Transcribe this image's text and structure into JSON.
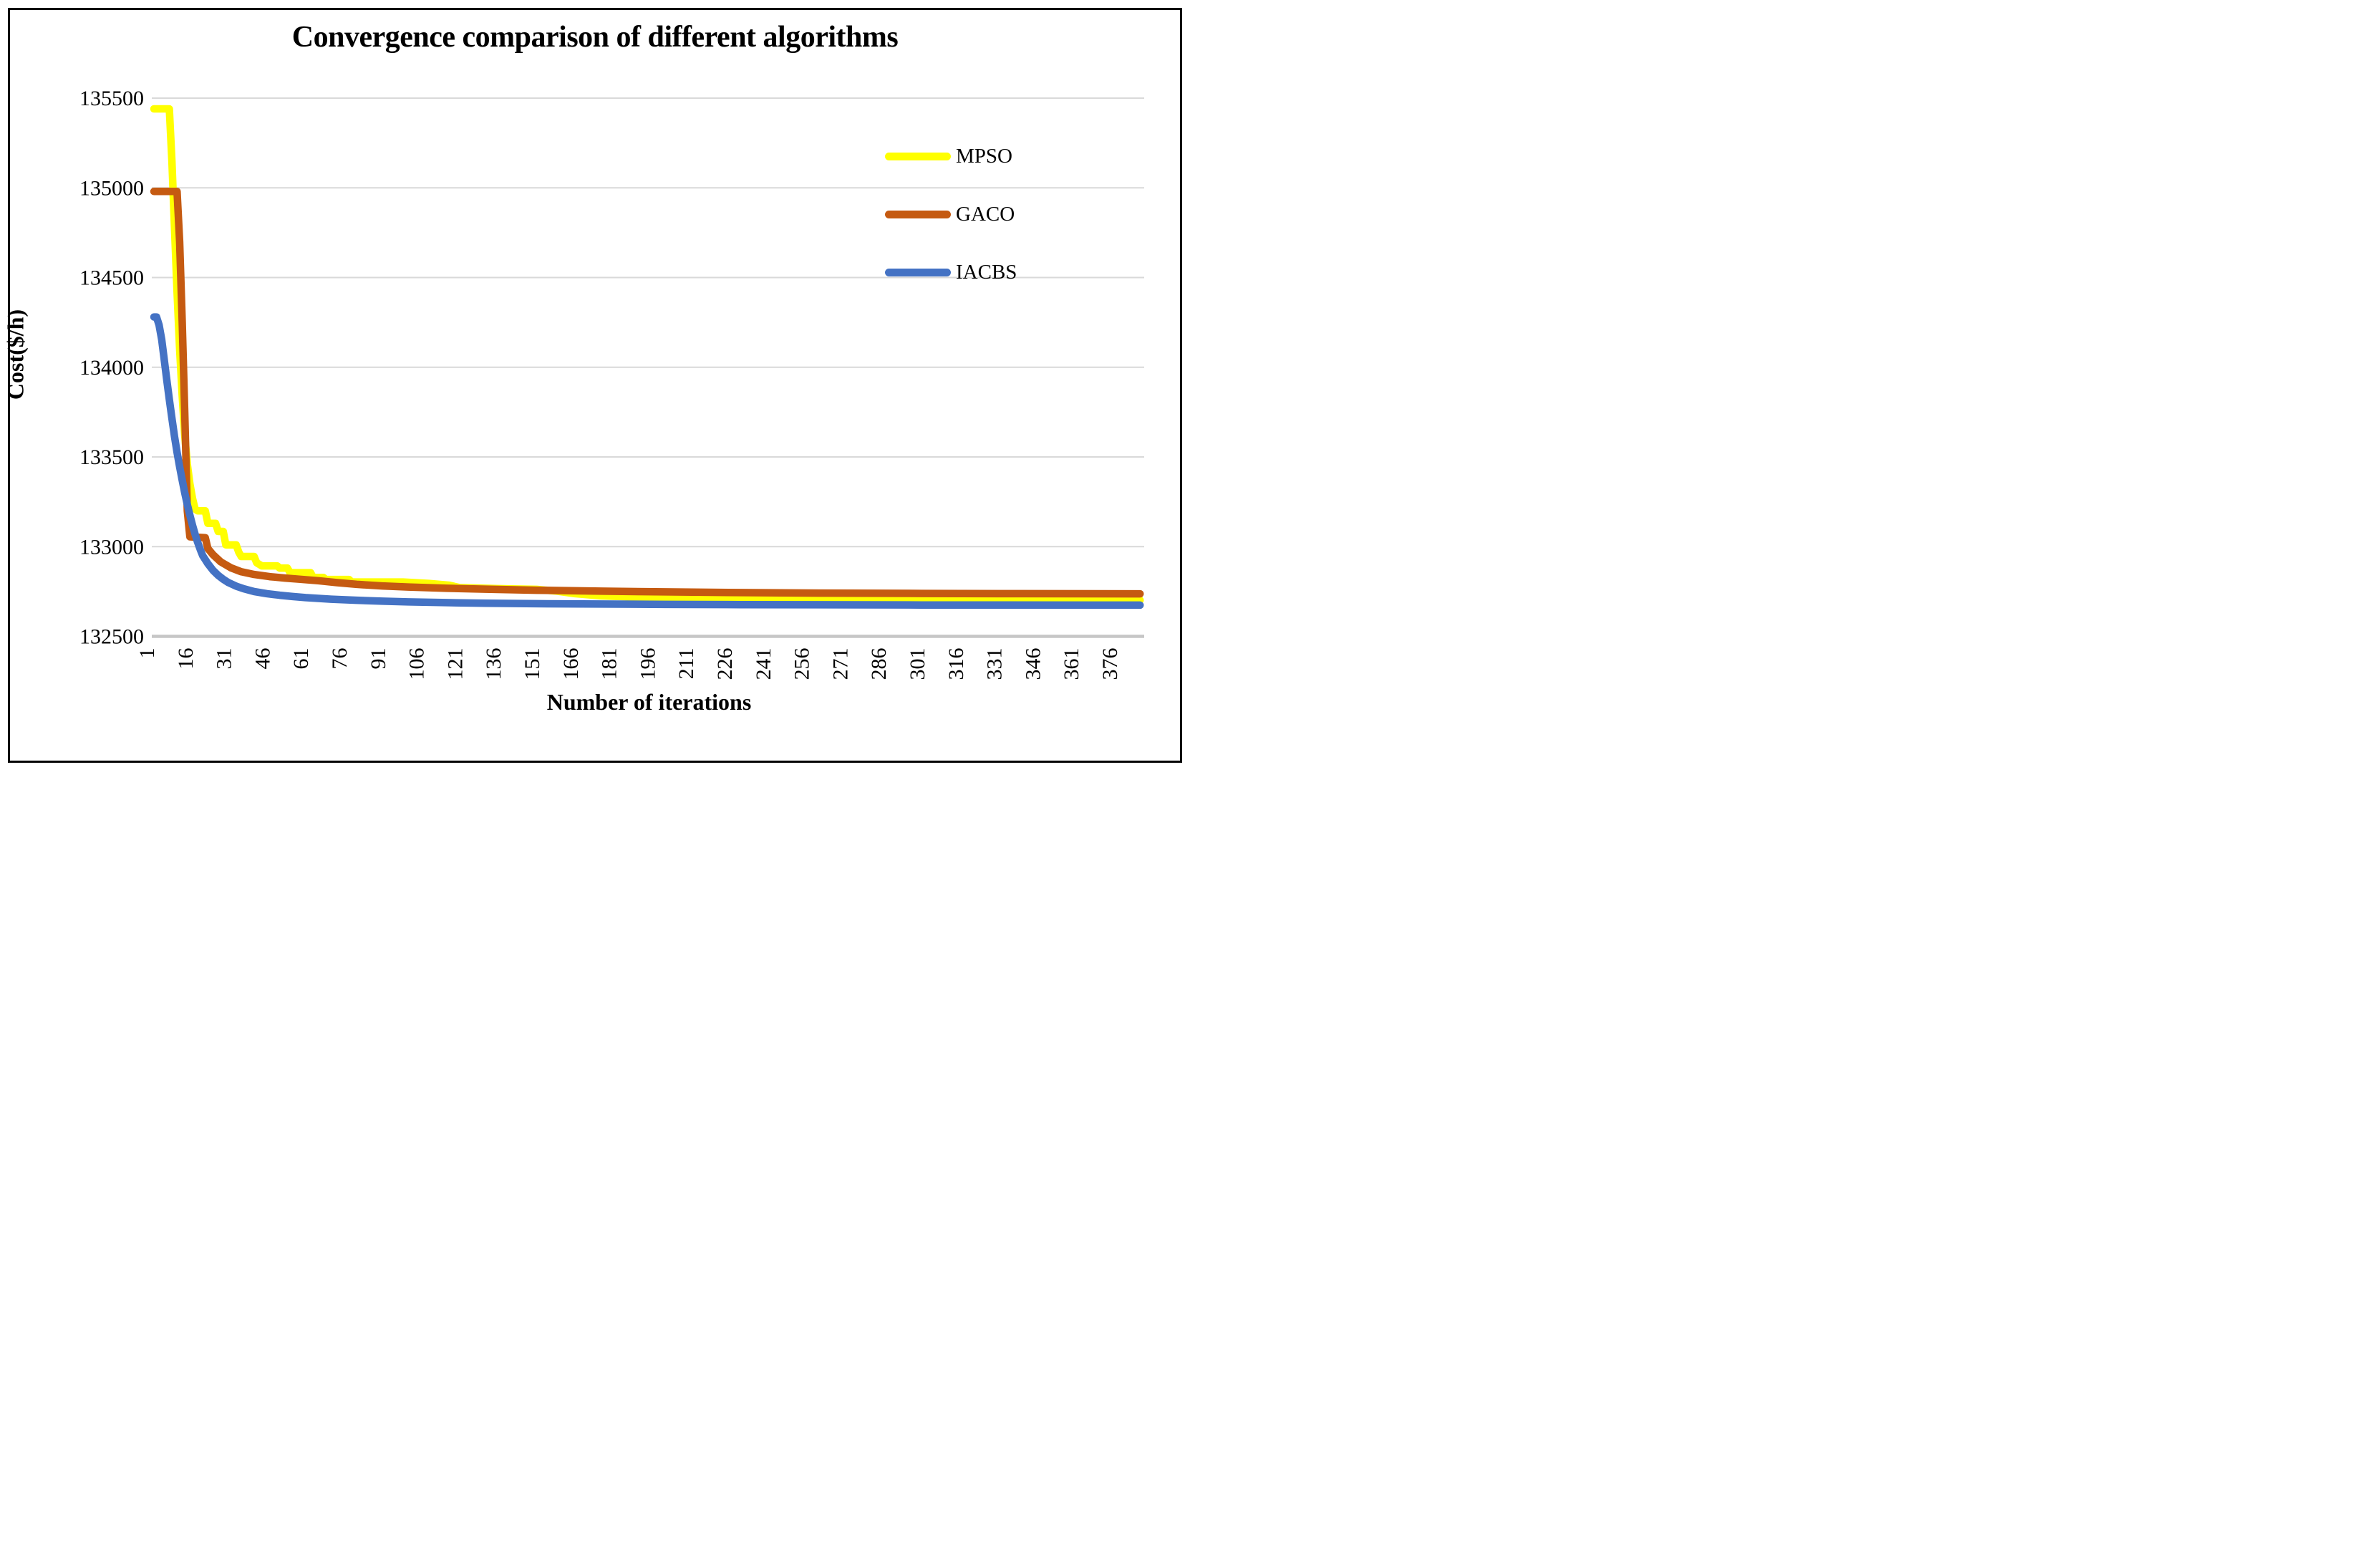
{
  "chart_data": {
    "type": "line",
    "title": "Convergence comparison of different algorithms",
    "xlabel": "Number of iterations",
    "ylabel": "Cost($/h)",
    "ylim": [
      132500,
      135500
    ],
    "xlim": [
      1,
      386
    ],
    "y_ticks": [
      135500,
      135000,
      134500,
      134000,
      133500,
      133000,
      132500
    ],
    "x_ticks": [
      1,
      16,
      31,
      46,
      61,
      76,
      91,
      106,
      121,
      136,
      151,
      166,
      181,
      196,
      211,
      226,
      241,
      256,
      271,
      286,
      301,
      316,
      331,
      346,
      361,
      376
    ],
    "grid": "horizontal",
    "legend_position": "top-right-inside",
    "x_tick_rotation_deg": -90,
    "series": [
      {
        "name": "MPSO",
        "color": "#FFFF00",
        "points": [
          [
            1,
            135440
          ],
          [
            7,
            135440
          ],
          [
            8,
            135150
          ],
          [
            9,
            134780
          ],
          [
            10,
            134420
          ],
          [
            11,
            134100
          ],
          [
            12,
            133840
          ],
          [
            13,
            133620
          ],
          [
            14,
            133460
          ],
          [
            15,
            133350
          ],
          [
            16,
            133270
          ],
          [
            17,
            133210
          ],
          [
            18,
            133200
          ],
          [
            21,
            133200
          ],
          [
            22,
            133130
          ],
          [
            25,
            133130
          ],
          [
            26,
            133085
          ],
          [
            28,
            133085
          ],
          [
            29,
            133010
          ],
          [
            33,
            133010
          ],
          [
            34,
            132970
          ],
          [
            35,
            132945
          ],
          [
            40,
            132945
          ],
          [
            41,
            132910
          ],
          [
            43,
            132893
          ],
          [
            49,
            132893
          ],
          [
            50,
            132880
          ],
          [
            53,
            132880
          ],
          [
            54,
            132855
          ],
          [
            62,
            132855
          ],
          [
            63,
            132828
          ],
          [
            67,
            132828
          ],
          [
            68,
            132817
          ],
          [
            77,
            132817
          ],
          [
            78,
            132803
          ],
          [
            98,
            132803
          ],
          [
            108,
            132795
          ],
          [
            116,
            132785
          ],
          [
            120,
            132772
          ],
          [
            135,
            132766
          ],
          [
            150,
            132762
          ],
          [
            158,
            132752
          ],
          [
            165,
            132738
          ],
          [
            175,
            132726
          ],
          [
            190,
            132718
          ],
          [
            210,
            132712
          ],
          [
            240,
            132708
          ],
          [
            280,
            132705
          ],
          [
            320,
            132703
          ],
          [
            385,
            132702
          ]
        ]
      },
      {
        "name": "GACO",
        "color": "#C55A11",
        "points": [
          [
            1,
            134980
          ],
          [
            10,
            134980
          ],
          [
            11,
            134700
          ],
          [
            12,
            134250
          ],
          [
            13,
            133750
          ],
          [
            14,
            133200
          ],
          [
            15,
            133055
          ],
          [
            21,
            133050
          ],
          [
            22,
            132990
          ],
          [
            24,
            132955
          ],
          [
            27,
            132915
          ],
          [
            31,
            132882
          ],
          [
            35,
            132860
          ],
          [
            40,
            132845
          ],
          [
            46,
            132833
          ],
          [
            52,
            132825
          ],
          [
            58,
            132818
          ],
          [
            65,
            132810
          ],
          [
            72,
            132800
          ],
          [
            80,
            132790
          ],
          [
            90,
            132781
          ],
          [
            100,
            132775
          ],
          [
            115,
            132768
          ],
          [
            130,
            132763
          ],
          [
            150,
            132757
          ],
          [
            175,
            132752
          ],
          [
            200,
            132748
          ],
          [
            230,
            132744
          ],
          [
            260,
            132741
          ],
          [
            300,
            132739
          ],
          [
            340,
            132738
          ],
          [
            385,
            132737
          ]
        ]
      },
      {
        "name": "IACBS",
        "color": "#4472C4",
        "points": [
          [
            1,
            134280
          ],
          [
            2,
            134280
          ],
          [
            3,
            134235
          ],
          [
            4,
            134155
          ],
          [
            5,
            134045
          ],
          [
            6,
            133930
          ],
          [
            7,
            133820
          ],
          [
            8,
            133715
          ],
          [
            9,
            133615
          ],
          [
            10,
            133525
          ],
          [
            11,
            133445
          ],
          [
            12,
            133370
          ],
          [
            13,
            133300
          ],
          [
            14,
            133235
          ],
          [
            15,
            133175
          ],
          [
            16,
            133120
          ],
          [
            17,
            133070
          ],
          [
            18,
            133025
          ],
          [
            19,
            132985
          ],
          [
            20,
            132950
          ],
          [
            22,
            132905
          ],
          [
            24,
            132868
          ],
          [
            26,
            132840
          ],
          [
            28,
            132818
          ],
          [
            30,
            132800
          ],
          [
            33,
            132780
          ],
          [
            36,
            132765
          ],
          [
            40,
            132750
          ],
          [
            45,
            132738
          ],
          [
            50,
            132729
          ],
          [
            55,
            132722
          ],
          [
            60,
            132716
          ],
          [
            70,
            132707
          ],
          [
            80,
            132701
          ],
          [
            90,
            132696
          ],
          [
            100,
            132692
          ],
          [
            115,
            132688
          ],
          [
            130,
            132685
          ],
          [
            150,
            132682
          ],
          [
            175,
            132680
          ],
          [
            200,
            132678
          ],
          [
            230,
            132677
          ],
          [
            260,
            132676
          ],
          [
            300,
            132675
          ],
          [
            385,
            132674
          ]
        ]
      }
    ]
  },
  "colors": {
    "background": "#FFFFFF",
    "frame_border": "#000000",
    "gridline": "#D9D9D9",
    "axis_line": "#C6C6C6",
    "text": "#000000"
  }
}
